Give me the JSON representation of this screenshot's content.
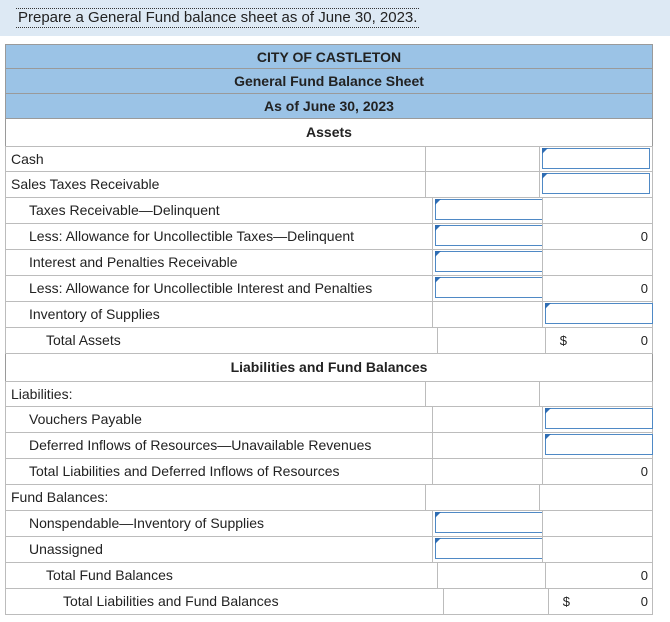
{
  "instruction": "Prepare a General Fund balance sheet as of June 30, 2023.",
  "header": {
    "line1": "CITY OF CASTLETON",
    "line2": "General Fund Balance Sheet",
    "line3": "As of June 30, 2023"
  },
  "assets": {
    "heading": "Assets",
    "rows": [
      {
        "label": "Cash"
      },
      {
        "label": "Sales Taxes Receivable"
      },
      {
        "label": "Taxes Receivable—Delinquent"
      },
      {
        "label": "Less: Allowance for Uncollectible Taxes—Delinquent",
        "value": "0"
      },
      {
        "label": "Interest and Penalties Receivable"
      },
      {
        "label": "Less: Allowance for Uncollectible Interest and Penalties",
        "value": "0"
      },
      {
        "label": "Inventory of Supplies"
      },
      {
        "label": "Total Assets",
        "dollar": "$",
        "value": "0"
      }
    ]
  },
  "liabilities": {
    "heading": "Liabilities and Fund Balances",
    "rows": [
      {
        "label": "Liabilities:"
      },
      {
        "label": "Vouchers Payable"
      },
      {
        "label": "Deferred Inflows of Resources—Unavailable Revenues"
      },
      {
        "label": "Total Liabilities and Deferred Inflows of Resources",
        "value": "0"
      },
      {
        "label": "Fund Balances:"
      },
      {
        "label": "Nonspendable—Inventory of Supplies"
      },
      {
        "label": "Unassigned"
      },
      {
        "label": "Total Fund Balances",
        "value": "0"
      },
      {
        "label": "Total Liabilities and Fund Balances",
        "dollar": "$",
        "value": "0"
      }
    ]
  }
}
